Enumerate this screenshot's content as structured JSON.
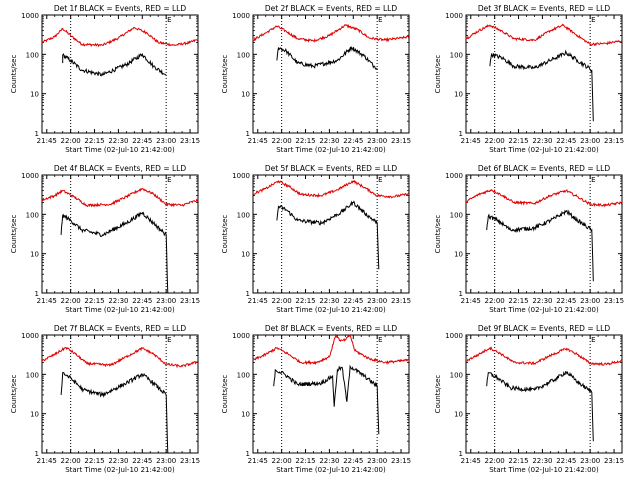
{
  "chart_data": {
    "type": "line",
    "x_ticks": [
      "21:45",
      "22:00",
      "22:15",
      "22:30",
      "22:45",
      "23:00",
      "23:15"
    ],
    "x_range": [
      "21:42",
      "23:20"
    ],
    "y_ticks": [
      "1",
      "10",
      "100",
      "1000"
    ],
    "ylim": [
      1,
      1000
    ],
    "y_scale": "log",
    "ylabel": "Counts/sec",
    "xlabel": "Start Time (02-Jul-10 21:42:00)",
    "series_colors": {
      "Events": "#000000",
      "LLD": "#e00000"
    },
    "marker_lines": [
      {
        "label": "",
        "time": "22:00"
      },
      {
        "label": "E",
        "time": "23:00"
      }
    ],
    "panels": [
      {
        "title": "Det 1f BLACK = Events, RED = LLD",
        "lld": [
          {
            "t": "21:42",
            "v": 200
          },
          {
            "t": "21:50",
            "v": 280
          },
          {
            "t": "21:55",
            "v": 450
          },
          {
            "t": "22:00",
            "v": 300
          },
          {
            "t": "22:07",
            "v": 180
          },
          {
            "t": "22:20",
            "v": 170
          },
          {
            "t": "22:30",
            "v": 260
          },
          {
            "t": "22:40",
            "v": 480
          },
          {
            "t": "22:48",
            "v": 350
          },
          {
            "t": "22:55",
            "v": 200
          },
          {
            "t": "23:05",
            "v": 170
          },
          {
            "t": "23:15",
            "v": 200
          },
          {
            "t": "23:20",
            "v": 240
          }
        ],
        "events": [
          {
            "t": "21:55",
            "v": 60
          },
          {
            "t": "21:55",
            "v": 95
          },
          {
            "t": "22:00",
            "v": 70
          },
          {
            "t": "22:07",
            "v": 40
          },
          {
            "t": "22:20",
            "v": 30
          },
          {
            "t": "22:35",
            "v": 55
          },
          {
            "t": "22:45",
            "v": 100
          },
          {
            "t": "22:52",
            "v": 50
          },
          {
            "t": "23:00",
            "v": 30
          }
        ]
      },
      {
        "title": "Det 2f BLACK = Events, RED = LLD",
        "lld": [
          {
            "t": "21:42",
            "v": 230
          },
          {
            "t": "21:50",
            "v": 350
          },
          {
            "t": "21:57",
            "v": 520
          },
          {
            "t": "22:03",
            "v": 380
          },
          {
            "t": "22:10",
            "v": 250
          },
          {
            "t": "22:20",
            "v": 220
          },
          {
            "t": "22:30",
            "v": 300
          },
          {
            "t": "22:40",
            "v": 550
          },
          {
            "t": "22:48",
            "v": 420
          },
          {
            "t": "22:55",
            "v": 260
          },
          {
            "t": "23:05",
            "v": 230
          },
          {
            "t": "23:15",
            "v": 260
          },
          {
            "t": "23:20",
            "v": 280
          }
        ],
        "events": [
          {
            "t": "21:57",
            "v": 70
          },
          {
            "t": "21:58",
            "v": 150
          },
          {
            "t": "22:03",
            "v": 120
          },
          {
            "t": "22:10",
            "v": 60
          },
          {
            "t": "22:20",
            "v": 50
          },
          {
            "t": "22:35",
            "v": 70
          },
          {
            "t": "22:44",
            "v": 150
          },
          {
            "t": "22:52",
            "v": 90
          },
          {
            "t": "22:58",
            "v": 50
          },
          {
            "t": "23:00",
            "v": 45
          }
        ]
      },
      {
        "title": "Det 3f BLACK = Events, RED = LLD",
        "lld": [
          {
            "t": "21:42",
            "v": 250
          },
          {
            "t": "21:50",
            "v": 400
          },
          {
            "t": "21:57",
            "v": 550
          },
          {
            "t": "22:05",
            "v": 380
          },
          {
            "t": "22:12",
            "v": 250
          },
          {
            "t": "22:25",
            "v": 230
          },
          {
            "t": "22:35",
            "v": 400
          },
          {
            "t": "22:43",
            "v": 550
          },
          {
            "t": "22:52",
            "v": 300
          },
          {
            "t": "23:00",
            "v": 180
          },
          {
            "t": "23:10",
            "v": 190
          },
          {
            "t": "23:20",
            "v": 220
          }
        ],
        "events": [
          {
            "t": "21:57",
            "v": 50
          },
          {
            "t": "21:58",
            "v": 100
          },
          {
            "t": "22:05",
            "v": 80
          },
          {
            "t": "22:12",
            "v": 50
          },
          {
            "t": "22:25",
            "v": 45
          },
          {
            "t": "22:38",
            "v": 80
          },
          {
            "t": "22:45",
            "v": 110
          },
          {
            "t": "22:52",
            "v": 70
          },
          {
            "t": "23:01",
            "v": 40
          },
          {
            "t": "23:02",
            "v": 2
          }
        ]
      },
      {
        "title": "Det 4f BLACK = Events, RED = LLD",
        "lld": [
          {
            "t": "21:42",
            "v": 230
          },
          {
            "t": "21:50",
            "v": 300
          },
          {
            "t": "21:55",
            "v": 400
          },
          {
            "t": "22:02",
            "v": 280
          },
          {
            "t": "22:10",
            "v": 170
          },
          {
            "t": "22:25",
            "v": 180
          },
          {
            "t": "22:35",
            "v": 280
          },
          {
            "t": "22:45",
            "v": 450
          },
          {
            "t": "22:52",
            "v": 330
          },
          {
            "t": "23:00",
            "v": 180
          },
          {
            "t": "23:10",
            "v": 170
          },
          {
            "t": "23:20",
            "v": 230
          }
        ],
        "events": [
          {
            "t": "21:54",
            "v": 30
          },
          {
            "t": "21:55",
            "v": 95
          },
          {
            "t": "22:00",
            "v": 70
          },
          {
            "t": "22:07",
            "v": 40
          },
          {
            "t": "22:20",
            "v": 30
          },
          {
            "t": "22:35",
            "v": 60
          },
          {
            "t": "22:45",
            "v": 110
          },
          {
            "t": "22:52",
            "v": 60
          },
          {
            "t": "23:00",
            "v": 30
          },
          {
            "t": "23:01",
            "v": 1
          }
        ]
      },
      {
        "title": "Det 5f BLACK = Events, RED = LLD",
        "lld": [
          {
            "t": "21:42",
            "v": 330
          },
          {
            "t": "21:50",
            "v": 450
          },
          {
            "t": "21:58",
            "v": 700
          },
          {
            "t": "22:05",
            "v": 500
          },
          {
            "t": "22:12",
            "v": 320
          },
          {
            "t": "22:25",
            "v": 300
          },
          {
            "t": "22:35",
            "v": 420
          },
          {
            "t": "22:45",
            "v": 700
          },
          {
            "t": "22:52",
            "v": 480
          },
          {
            "t": "23:00",
            "v": 300
          },
          {
            "t": "23:10",
            "v": 280
          },
          {
            "t": "23:20",
            "v": 330
          }
        ],
        "events": [
          {
            "t": "21:57",
            "v": 70
          },
          {
            "t": "21:58",
            "v": 160
          },
          {
            "t": "22:03",
            "v": 130
          },
          {
            "t": "22:10",
            "v": 70
          },
          {
            "t": "22:25",
            "v": 60
          },
          {
            "t": "22:37",
            "v": 110
          },
          {
            "t": "22:45",
            "v": 200
          },
          {
            "t": "22:52",
            "v": 110
          },
          {
            "t": "23:00",
            "v": 60
          },
          {
            "t": "23:01",
            "v": 4
          }
        ]
      },
      {
        "title": "Det 6f BLACK = Events, RED = LLD",
        "lld": [
          {
            "t": "21:42",
            "v": 210
          },
          {
            "t": "21:50",
            "v": 320
          },
          {
            "t": "21:58",
            "v": 420
          },
          {
            "t": "22:05",
            "v": 300
          },
          {
            "t": "22:12",
            "v": 200
          },
          {
            "t": "22:25",
            "v": 190
          },
          {
            "t": "22:35",
            "v": 300
          },
          {
            "t": "22:45",
            "v": 400
          },
          {
            "t": "22:52",
            "v": 280
          },
          {
            "t": "23:00",
            "v": 180
          },
          {
            "t": "23:10",
            "v": 170
          },
          {
            "t": "23:20",
            "v": 200
          }
        ],
        "events": [
          {
            "t": "21:55",
            "v": 40
          },
          {
            "t": "21:56",
            "v": 90
          },
          {
            "t": "22:02",
            "v": 70
          },
          {
            "t": "22:10",
            "v": 40
          },
          {
            "t": "22:25",
            "v": 45
          },
          {
            "t": "22:38",
            "v": 80
          },
          {
            "t": "22:45",
            "v": 120
          },
          {
            "t": "22:52",
            "v": 70
          },
          {
            "t": "23:01",
            "v": 40
          },
          {
            "t": "23:02",
            "v": 2
          }
        ]
      },
      {
        "title": "Det 7f BLACK = Events, RED = LLD",
        "lld": [
          {
            "t": "21:42",
            "v": 220
          },
          {
            "t": "21:50",
            "v": 320
          },
          {
            "t": "21:57",
            "v": 480
          },
          {
            "t": "22:03",
            "v": 330
          },
          {
            "t": "22:10",
            "v": 190
          },
          {
            "t": "22:25",
            "v": 170
          },
          {
            "t": "22:35",
            "v": 280
          },
          {
            "t": "22:45",
            "v": 460
          },
          {
            "t": "22:52",
            "v": 330
          },
          {
            "t": "23:00",
            "v": 180
          },
          {
            "t": "23:10",
            "v": 160
          },
          {
            "t": "23:20",
            "v": 210
          }
        ],
        "events": [
          {
            "t": "21:54",
            "v": 30
          },
          {
            "t": "21:55",
            "v": 110
          },
          {
            "t": "22:00",
            "v": 80
          },
          {
            "t": "22:08",
            "v": 40
          },
          {
            "t": "22:20",
            "v": 30
          },
          {
            "t": "22:35",
            "v": 60
          },
          {
            "t": "22:45",
            "v": 100
          },
          {
            "t": "22:52",
            "v": 60
          },
          {
            "t": "23:00",
            "v": 30
          },
          {
            "t": "23:01",
            "v": 1
          }
        ]
      },
      {
        "title": "Det 8f BLACK = Events, RED = LLD",
        "lld": [
          {
            "t": "21:42",
            "v": 230
          },
          {
            "t": "21:50",
            "v": 320
          },
          {
            "t": "21:57",
            "v": 470
          },
          {
            "t": "22:04",
            "v": 330
          },
          {
            "t": "22:12",
            "v": 200
          },
          {
            "t": "22:22",
            "v": 200
          },
          {
            "t": "22:30",
            "v": 280
          },
          {
            "t": "22:34",
            "v": 1000
          },
          {
            "t": "22:37",
            "v": 700
          },
          {
            "t": "22:40",
            "v": 750
          },
          {
            "t": "22:43",
            "v": 1000
          },
          {
            "t": "22:46",
            "v": 400
          },
          {
            "t": "22:55",
            "v": 250
          },
          {
            "t": "23:05",
            "v": 200
          },
          {
            "t": "23:20",
            "v": 230
          }
        ],
        "events": [
          {
            "t": "21:55",
            "v": 50
          },
          {
            "t": "21:56",
            "v": 130
          },
          {
            "t": "22:02",
            "v": 100
          },
          {
            "t": "22:10",
            "v": 55
          },
          {
            "t": "22:25",
            "v": 60
          },
          {
            "t": "22:32",
            "v": 90
          },
          {
            "t": "22:33",
            "v": 15
          },
          {
            "t": "22:35",
            "v": 130
          },
          {
            "t": "22:38",
            "v": 150
          },
          {
            "t": "22:41",
            "v": 20
          },
          {
            "t": "22:43",
            "v": 160
          },
          {
            "t": "22:52",
            "v": 90
          },
          {
            "t": "23:00",
            "v": 50
          },
          {
            "t": "23:01",
            "v": 3
          }
        ]
      },
      {
        "title": "Det 9f BLACK = Events, RED = LLD",
        "lld": [
          {
            "t": "21:42",
            "v": 220
          },
          {
            "t": "21:50",
            "v": 320
          },
          {
            "t": "21:57",
            "v": 470
          },
          {
            "t": "22:04",
            "v": 330
          },
          {
            "t": "22:12",
            "v": 200
          },
          {
            "t": "22:25",
            "v": 190
          },
          {
            "t": "22:35",
            "v": 300
          },
          {
            "t": "22:45",
            "v": 450
          },
          {
            "t": "22:52",
            "v": 320
          },
          {
            "t": "23:00",
            "v": 190
          },
          {
            "t": "23:10",
            "v": 180
          },
          {
            "t": "23:20",
            "v": 220
          }
        ],
        "events": [
          {
            "t": "21:55",
            "v": 50
          },
          {
            "t": "21:56",
            "v": 110
          },
          {
            "t": "22:02",
            "v": 80
          },
          {
            "t": "22:10",
            "v": 45
          },
          {
            "t": "22:25",
            "v": 40
          },
          {
            "t": "22:38",
            "v": 75
          },
          {
            "t": "22:45",
            "v": 115
          },
          {
            "t": "22:52",
            "v": 65
          },
          {
            "t": "23:01",
            "v": 35
          },
          {
            "t": "23:02",
            "v": 2
          }
        ]
      }
    ]
  }
}
